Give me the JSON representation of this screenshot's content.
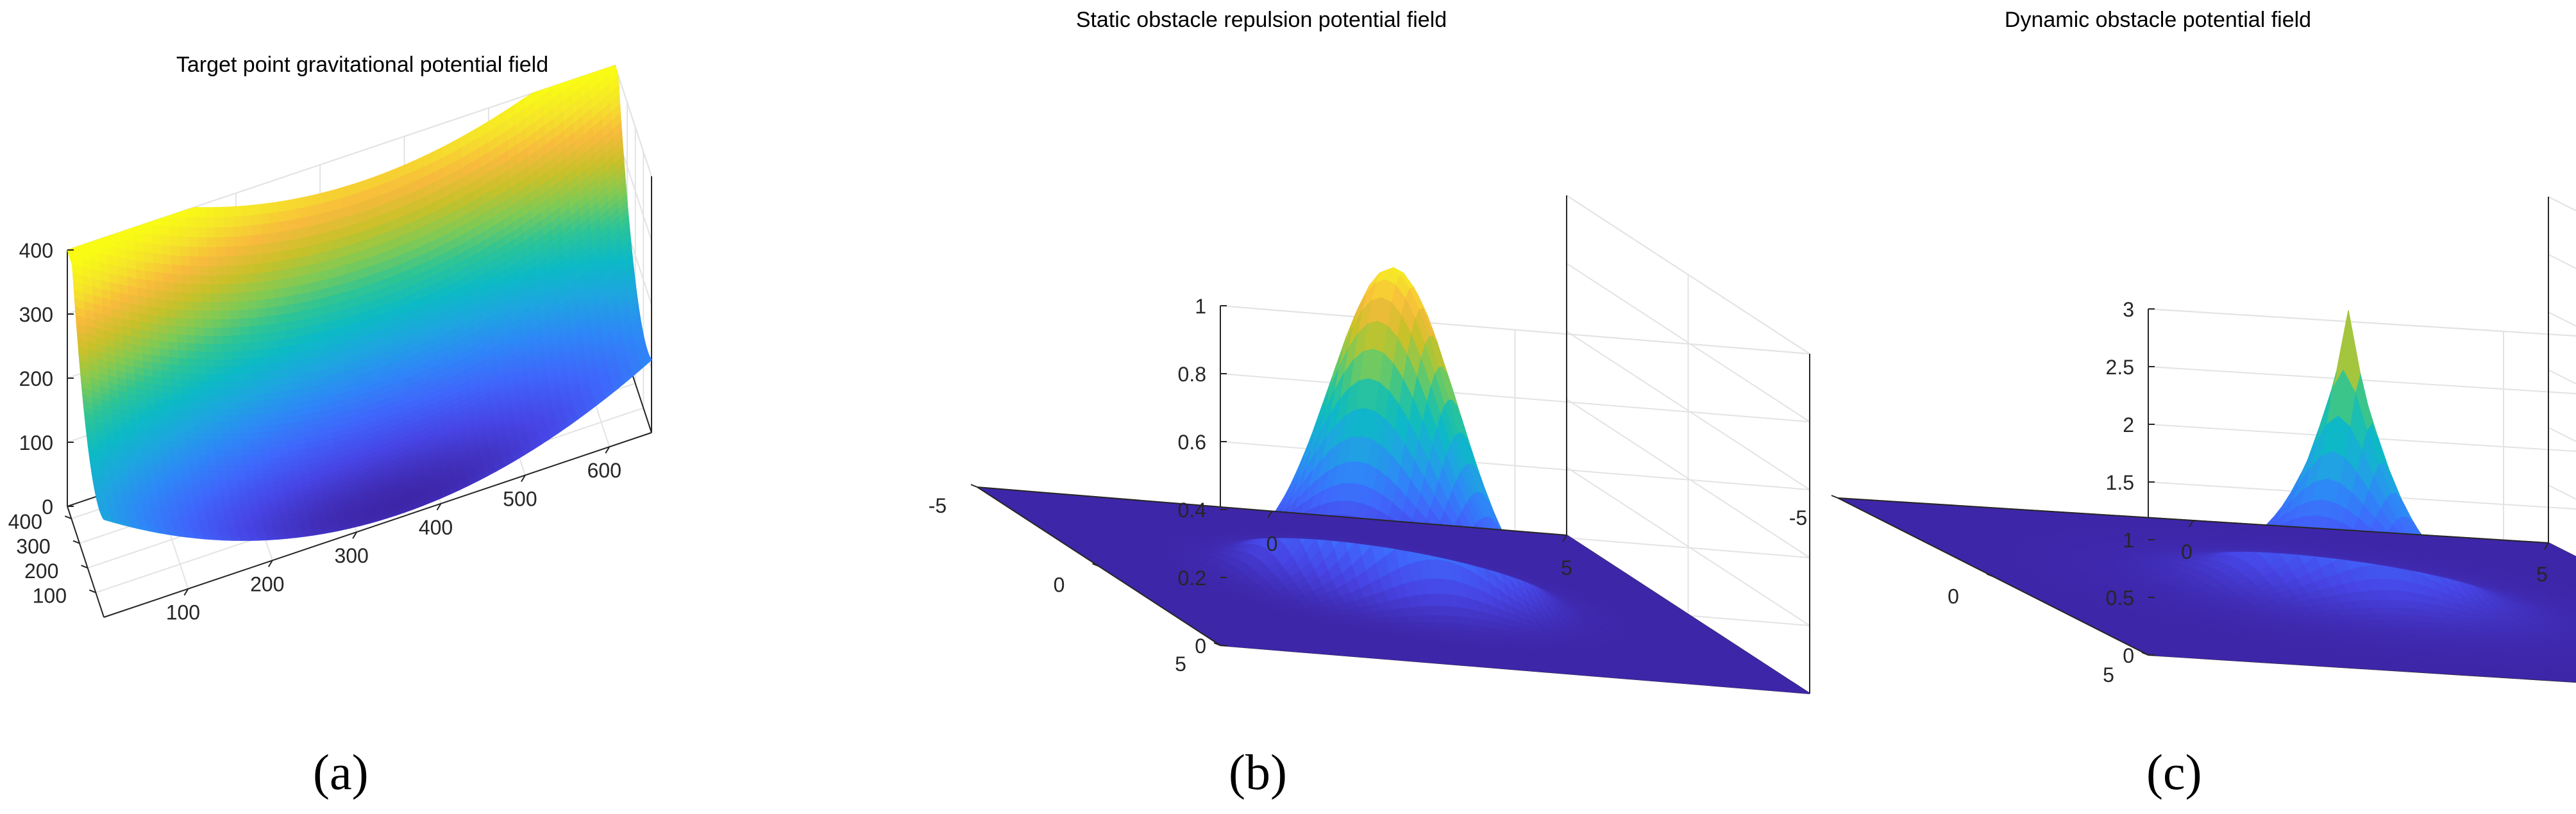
{
  "colormap": [
    "#3e26a8",
    "#4744e4",
    "#3f66fb",
    "#2e87f7",
    "#1ea5e0",
    "#0cbac5",
    "#2dc496",
    "#7fca55",
    "#c7c129",
    "#f8ba3d",
    "#f5e32a",
    "#f9fb15"
  ],
  "chart_data": [
    {
      "type": "surface",
      "title": "Target point gravitational potential field",
      "label": "(a)",
      "x_ticks": [
        "100",
        "200",
        "300",
        "400",
        "500",
        "600"
      ],
      "y_ticks": [
        "100",
        "200",
        "300",
        "400"
      ],
      "z_ticks": [
        "0",
        "100",
        "200",
        "300",
        "400"
      ],
      "xlim": [
        0,
        650
      ],
      "ylim": [
        0,
        450
      ],
      "zlim": [
        0,
        400
      ],
      "surface": {
        "kind": "paraboloid",
        "center": [
          350,
          50
        ],
        "a": 0.0012,
        "b": 0.0022
      },
      "grid": true
    },
    {
      "type": "surface",
      "title": "Static obstacle repulsion potential field",
      "label": "(b)",
      "x_ticks": [
        "0",
        "5"
      ],
      "y_ticks": [
        "-5",
        "0",
        "5"
      ],
      "z_ticks": [
        "0",
        "0.2",
        "0.4",
        "0.6",
        "0.8",
        "1"
      ],
      "xlim": [
        -5,
        5
      ],
      "ylim": [
        -5,
        5
      ],
      "zlim": [
        0,
        1
      ],
      "surface": {
        "kind": "gaussian",
        "peak": 0.95,
        "center": [
          0,
          0
        ],
        "sigma": 1.0
      },
      "grid": true
    },
    {
      "type": "surface",
      "title": "Dynamic obstacle potential field",
      "label": "(c)",
      "x_ticks": [
        "0",
        "5"
      ],
      "y_ticks": [
        "-5",
        "0",
        "5"
      ],
      "z_ticks": [
        "0",
        "0.5",
        "1",
        "1.5",
        "2",
        "2.5",
        "3"
      ],
      "xlim": [
        -5,
        5
      ],
      "ylim": [
        -5,
        5
      ],
      "zlim": [
        0,
        3
      ],
      "surface": {
        "kind": "cusp",
        "peak": 2.5,
        "center": [
          0,
          0
        ],
        "decay": 1.1
      },
      "grid": true
    }
  ]
}
